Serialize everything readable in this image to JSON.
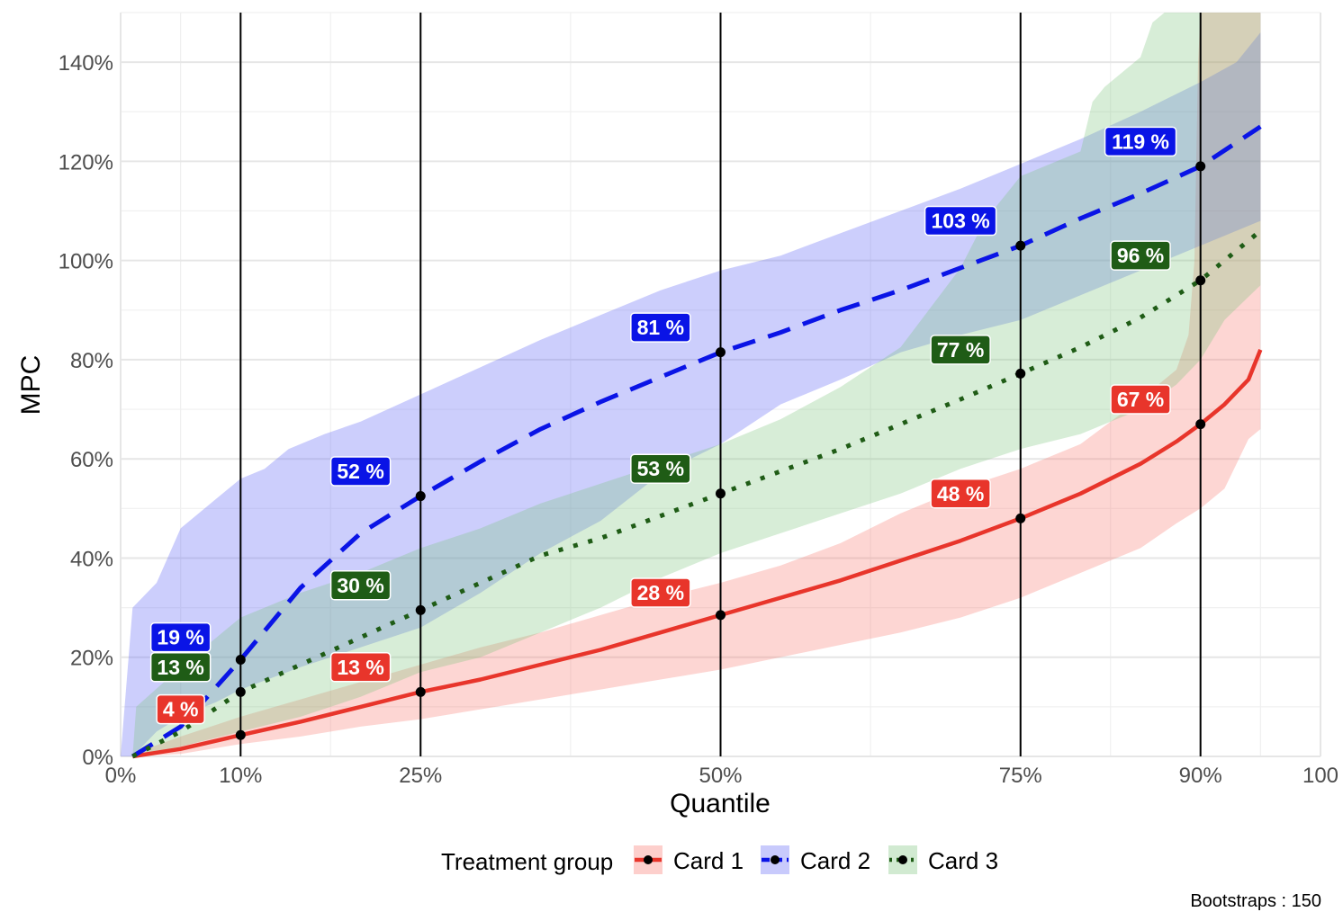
{
  "chart_data": {
    "type": "line",
    "title": "",
    "xlabel": "Quantile",
    "ylabel": "MPC",
    "xlim": [
      0,
      100
    ],
    "ylim": [
      0,
      150
    ],
    "x_ticks": [
      {
        "value": 0,
        "label": "0%"
      },
      {
        "value": 10,
        "label": "10%"
      },
      {
        "value": 25,
        "label": "25%"
      },
      {
        "value": 50,
        "label": "50%"
      },
      {
        "value": 75,
        "label": "75%"
      },
      {
        "value": 90,
        "label": "90%"
      },
      {
        "value": 100,
        "label": "100"
      }
    ],
    "y_ticks": [
      {
        "value": 0,
        "label": "0%"
      },
      {
        "value": 20,
        "label": "20%"
      },
      {
        "value": 40,
        "label": "40%"
      },
      {
        "value": 60,
        "label": "60%"
      },
      {
        "value": 80,
        "label": "80%"
      },
      {
        "value": 100,
        "label": "100%"
      },
      {
        "value": 120,
        "label": "120%"
      },
      {
        "value": 140,
        "label": "140%"
      }
    ],
    "minor_x": [
      5,
      17.5,
      37.5,
      62.5,
      82.5,
      95
    ],
    "minor_y": [
      10,
      30,
      50,
      70,
      90,
      110,
      130,
      150
    ],
    "vlines": [
      10,
      25,
      50,
      75,
      90
    ],
    "legend_title": "Treatment group",
    "series": [
      {
        "name": "Card 1",
        "color": "#e8352b",
        "fill": "#f8766d",
        "dash": "solid",
        "line": [
          [
            1,
            0
          ],
          [
            5,
            1.5
          ],
          [
            10,
            4.3
          ],
          [
            15,
            7
          ],
          [
            20,
            10
          ],
          [
            25,
            13
          ],
          [
            30,
            15.5
          ],
          [
            35,
            18.5
          ],
          [
            40,
            21.5
          ],
          [
            45,
            25
          ],
          [
            50,
            28.5
          ],
          [
            55,
            32
          ],
          [
            60,
            35.5
          ],
          [
            65,
            39.5
          ],
          [
            70,
            43.5
          ],
          [
            75,
            48
          ],
          [
            80,
            53
          ],
          [
            85,
            59
          ],
          [
            88,
            63.5
          ],
          [
            90,
            67
          ],
          [
            92,
            71
          ],
          [
            94,
            76
          ],
          [
            95,
            82
          ]
        ],
        "band_upper": [
          [
            1,
            0.5
          ],
          [
            5,
            4
          ],
          [
            10,
            8
          ],
          [
            15,
            11.5
          ],
          [
            20,
            15
          ],
          [
            25,
            18.5
          ],
          [
            30,
            22
          ],
          [
            35,
            25
          ],
          [
            40,
            28.5
          ],
          [
            45,
            32
          ],
          [
            50,
            35
          ],
          [
            55,
            38.5
          ],
          [
            60,
            43
          ],
          [
            65,
            49
          ],
          [
            70,
            54
          ],
          [
            75,
            58
          ],
          [
            80,
            63
          ],
          [
            85,
            72
          ],
          [
            88,
            78
          ],
          [
            89,
            85
          ],
          [
            89.5,
            100
          ],
          [
            89.8,
            140
          ],
          [
            90,
            150
          ],
          [
            95,
            150
          ]
        ],
        "band_lower": [
          [
            1,
            0
          ],
          [
            5,
            0.5
          ],
          [
            10,
            2.5
          ],
          [
            15,
            4
          ],
          [
            20,
            6
          ],
          [
            25,
            7.5
          ],
          [
            30,
            9.5
          ],
          [
            35,
            11.5
          ],
          [
            40,
            13.5
          ],
          [
            45,
            15.5
          ],
          [
            50,
            17.5
          ],
          [
            55,
            20
          ],
          [
            60,
            22.5
          ],
          [
            65,
            25
          ],
          [
            70,
            28
          ],
          [
            75,
            32
          ],
          [
            80,
            37
          ],
          [
            85,
            42
          ],
          [
            88,
            47
          ],
          [
            90,
            50
          ],
          [
            92,
            54
          ],
          [
            93,
            59
          ],
          [
            94,
            64
          ],
          [
            95,
            66
          ]
        ],
        "points": [
          [
            10,
            4.3
          ],
          [
            25,
            13
          ],
          [
            50,
            28.5
          ],
          [
            75,
            48
          ],
          [
            90,
            67
          ]
        ],
        "labels": [
          {
            "x": 5,
            "y": 9.5,
            "text": "4 %"
          },
          {
            "x": 20,
            "y": 18,
            "text": "13 %"
          },
          {
            "x": 45,
            "y": 33,
            "text": "28 %"
          },
          {
            "x": 70,
            "y": 53,
            "text": "48 %"
          },
          {
            "x": 85,
            "y": 72,
            "text": "67 %"
          }
        ]
      },
      {
        "name": "Card 2",
        "color": "#0a14e6",
        "fill": "#6168f7",
        "dash": "dashed",
        "line": [
          [
            1,
            0
          ],
          [
            5,
            6
          ],
          [
            10,
            19.5
          ],
          [
            15,
            34
          ],
          [
            20,
            45
          ],
          [
            25,
            52.5
          ],
          [
            30,
            59.5
          ],
          [
            35,
            66
          ],
          [
            40,
            71.5
          ],
          [
            45,
            76.5
          ],
          [
            50,
            81.5
          ],
          [
            55,
            85.5
          ],
          [
            60,
            90
          ],
          [
            65,
            94
          ],
          [
            70,
            98.5
          ],
          [
            75,
            103
          ],
          [
            80,
            108.5
          ],
          [
            85,
            113.5
          ],
          [
            90,
            119
          ],
          [
            95,
            127
          ]
        ],
        "band_upper": [
          [
            0,
            0
          ],
          [
            1,
            30
          ],
          [
            3,
            35
          ],
          [
            5,
            46
          ],
          [
            8,
            52
          ],
          [
            10,
            56
          ],
          [
            12,
            58
          ],
          [
            14,
            62
          ],
          [
            17,
            65
          ],
          [
            20,
            67.5
          ],
          [
            25,
            73
          ],
          [
            30,
            78.5
          ],
          [
            35,
            84
          ],
          [
            40,
            89
          ],
          [
            45,
            94
          ],
          [
            50,
            98
          ],
          [
            55,
            101
          ],
          [
            60,
            105.5
          ],
          [
            65,
            110
          ],
          [
            70,
            114.5
          ],
          [
            75,
            119.5
          ],
          [
            80,
            124.5
          ],
          [
            85,
            130
          ],
          [
            90,
            136
          ],
          [
            93,
            140
          ],
          [
            95,
            146
          ]
        ],
        "band_lower": [
          [
            1,
            0
          ],
          [
            3,
            5
          ],
          [
            5,
            8
          ],
          [
            8,
            11
          ],
          [
            10,
            13.5
          ],
          [
            15,
            18
          ],
          [
            20,
            22
          ],
          [
            25,
            26
          ],
          [
            30,
            33
          ],
          [
            35,
            41
          ],
          [
            40,
            47.5
          ],
          [
            45,
            57
          ],
          [
            50,
            63
          ],
          [
            55,
            71
          ],
          [
            60,
            76
          ],
          [
            65,
            81.5
          ],
          [
            70,
            85
          ],
          [
            75,
            88
          ],
          [
            80,
            93
          ],
          [
            85,
            98
          ],
          [
            90,
            103
          ],
          [
            95,
            108
          ]
        ],
        "points": [
          [
            10,
            19.5
          ],
          [
            25,
            52.5
          ],
          [
            50,
            81.5
          ],
          [
            75,
            103
          ],
          [
            90,
            119
          ]
        ],
        "labels": [
          {
            "x": 5,
            "y": 24,
            "text": "19 %"
          },
          {
            "x": 20,
            "y": 57.5,
            "text": "52 %"
          },
          {
            "x": 45,
            "y": 86.5,
            "text": "81 %"
          },
          {
            "x": 70,
            "y": 108,
            "text": "103 %"
          },
          {
            "x": 85,
            "y": 124,
            "text": "119 %"
          }
        ]
      },
      {
        "name": "Card 3",
        "color": "#1f5c16",
        "fill": "#7cc27b",
        "dash": "dotted",
        "line": [
          [
            1,
            0
          ],
          [
            5,
            5
          ],
          [
            10,
            13
          ],
          [
            15,
            18.5
          ],
          [
            20,
            24
          ],
          [
            25,
            29.5
          ],
          [
            30,
            35
          ],
          [
            35,
            40.5
          ],
          [
            40,
            44
          ],
          [
            45,
            48.5
          ],
          [
            50,
            53
          ],
          [
            55,
            57.5
          ],
          [
            60,
            62
          ],
          [
            65,
            67
          ],
          [
            70,
            72
          ],
          [
            75,
            77.2
          ],
          [
            80,
            82.5
          ],
          [
            85,
            88.5
          ],
          [
            90,
            96
          ],
          [
            95,
            106
          ]
        ],
        "band_upper": [
          [
            1,
            0
          ],
          [
            1.3,
            10
          ],
          [
            5,
            18
          ],
          [
            10,
            28
          ],
          [
            15,
            33
          ],
          [
            20,
            37
          ],
          [
            25,
            42
          ],
          [
            30,
            46
          ],
          [
            35,
            51
          ],
          [
            40,
            55
          ],
          [
            45,
            59
          ],
          [
            50,
            63
          ],
          [
            55,
            68
          ],
          [
            60,
            74.5
          ],
          [
            65,
            82.5
          ],
          [
            70,
            98.5
          ],
          [
            72,
            108
          ],
          [
            75,
            117
          ],
          [
            80,
            122
          ],
          [
            81,
            132
          ],
          [
            82,
            135
          ],
          [
            85,
            141
          ],
          [
            86,
            148
          ],
          [
            87,
            150
          ],
          [
            95,
            150
          ]
        ],
        "band_lower": [
          [
            1,
            0
          ],
          [
            5,
            2
          ],
          [
            10,
            5
          ],
          [
            15,
            8
          ],
          [
            20,
            12
          ],
          [
            25,
            17
          ],
          [
            30,
            20
          ],
          [
            35,
            25
          ],
          [
            40,
            30
          ],
          [
            45,
            36
          ],
          [
            50,
            41
          ],
          [
            55,
            45
          ],
          [
            60,
            49
          ],
          [
            65,
            53
          ],
          [
            70,
            58
          ],
          [
            75,
            62
          ],
          [
            80,
            65
          ],
          [
            85,
            70
          ],
          [
            88,
            75
          ],
          [
            90,
            80
          ],
          [
            92,
            88
          ],
          [
            95,
            95
          ]
        ],
        "points": [
          [
            10,
            13
          ],
          [
            25,
            29.5
          ],
          [
            50,
            53
          ],
          [
            75,
            77.2
          ],
          [
            90,
            96
          ]
        ],
        "labels": [
          {
            "x": 5,
            "y": 18,
            "text": "13 %"
          },
          {
            "x": 20,
            "y": 34.5,
            "text": "30 %"
          },
          {
            "x": 45,
            "y": 58,
            "text": "53 %"
          },
          {
            "x": 70,
            "y": 82,
            "text": "77 %"
          },
          {
            "x": 85,
            "y": 101,
            "text": "96 %"
          }
        ]
      }
    ],
    "caption": "Bootstraps : 150"
  }
}
